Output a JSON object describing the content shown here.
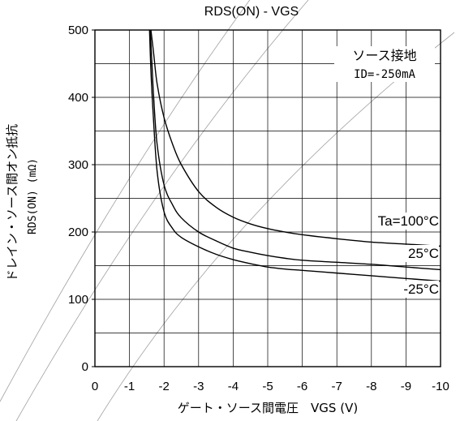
{
  "chart_data": {
    "type": "line",
    "title": "RDS(ON) - VGS",
    "xlabel": "ゲート・ソース間電圧　VGS (V)",
    "ylabel": "ドレイン・ソース間オン抵抗",
    "ylabel_sub": "RDS(ON) (mΩ)",
    "xlim": [
      0,
      -10
    ],
    "ylim": [
      0,
      500
    ],
    "x_ticks": [
      "0",
      "-1",
      "-2",
      "-3",
      "-4",
      "-5",
      "-6",
      "-7",
      "-8",
      "-9",
      "-10"
    ],
    "y_ticks": [
      "0",
      "100",
      "200",
      "300",
      "400",
      "500"
    ],
    "grid": true,
    "annotations": {
      "condition_line1": "ソース接地",
      "condition_line2": "ID=-250mA"
    },
    "series": [
      {
        "name": "Ta=100°C",
        "x": [
          -1.62,
          -1.7,
          -1.8,
          -2.0,
          -2.25,
          -2.5,
          -3.0,
          -3.5,
          -4.0,
          -4.5,
          -5.0,
          -5.5,
          -6.0,
          -7.0,
          -8.0,
          -9.0,
          -10.0
        ],
        "y": [
          500,
          465,
          420,
          370,
          330,
          300,
          260,
          237,
          222,
          212,
          205,
          200,
          196,
          190,
          185,
          182,
          179
        ]
      },
      {
        "name": "25°C",
        "x": [
          -1.6,
          -1.65,
          -1.7,
          -1.8,
          -2.0,
          -2.25,
          -2.5,
          -3.0,
          -3.5,
          -4.0,
          -4.5,
          -5.0,
          -5.5,
          -6.0,
          -7.0,
          -8.0,
          -9.0,
          -10.0
        ],
        "y": [
          500,
          450,
          400,
          330,
          270,
          240,
          221,
          200,
          187,
          176,
          170,
          165,
          161,
          158,
          155,
          152,
          148,
          144
        ]
      },
      {
        "name": "-25°C",
        "x": [
          -1.58,
          -1.62,
          -1.68,
          -1.8,
          -2.0,
          -2.25,
          -2.5,
          -3.0,
          -3.5,
          -4.0,
          -4.5,
          -5.0,
          -5.5,
          -6.0,
          -7.0,
          -8.0,
          -9.0,
          -10.0
        ],
        "y": [
          500,
          440,
          380,
          290,
          230,
          205,
          192,
          178,
          167,
          159,
          153,
          148,
          145,
          143,
          139,
          135,
          131,
          127
        ]
      }
    ],
    "curve_labels": [
      "Ta=100°C",
      "25°C",
      "-25°C"
    ]
  }
}
